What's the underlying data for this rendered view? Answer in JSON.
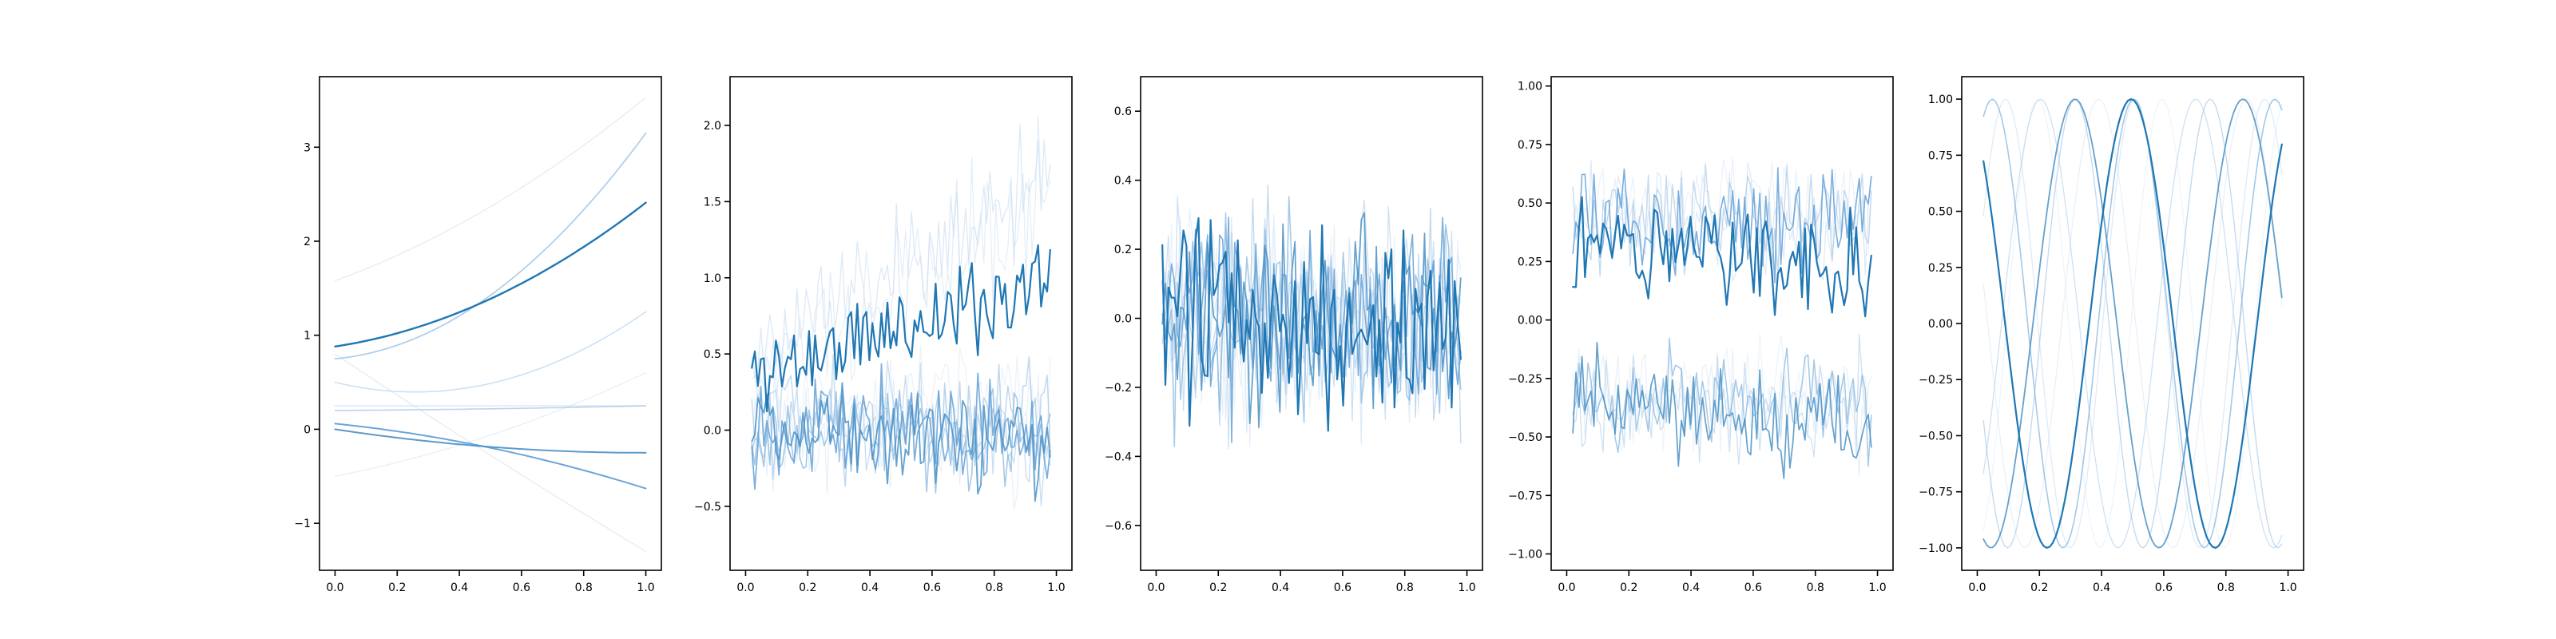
{
  "chart_data": [
    {
      "type": "line",
      "xlim": [
        -0.05,
        1.05
      ],
      "ylim": [
        -1.5,
        3.75
      ],
      "xticks": [
        0.0,
        0.2,
        0.4,
        0.6,
        0.8,
        1.0
      ],
      "xtick_labels": [
        "0.0",
        "0.2",
        "0.4",
        "0.6",
        "0.8",
        "1.0"
      ],
      "yticks": [
        -1,
        0,
        1,
        2,
        3
      ],
      "ytick_labels": [
        "−1",
        "0",
        "1",
        "2",
        "3"
      ],
      "grid": false,
      "series_kind": "polynomial",
      "series": [
        {
          "coeffs": [
            0.88,
            0.5,
            1.03
          ],
          "color": "#1f77b4",
          "opacity": 1.0,
          "width": 2.4
        },
        {
          "coeffs": [
            0.0,
            -0.5,
            0.25
          ],
          "color": "#4a90c4",
          "opacity": 0.9,
          "width": 2.0
        },
        {
          "coeffs": [
            0.06,
            -0.34,
            -0.35
          ],
          "color": "#5b9bd5",
          "opacity": 0.9,
          "width": 2.0
        },
        {
          "coeffs": [
            0.75,
            0.3,
            2.1
          ],
          "color": "#7fb2dd",
          "opacity": 0.65,
          "width": 1.7
        },
        {
          "coeffs": [
            0.5,
            -0.8,
            1.55
          ],
          "color": "#a6c9e8",
          "opacity": 0.6,
          "width": 1.5
        },
        {
          "coeffs": [
            0.2,
            0.02,
            0.03
          ],
          "color": "#9ec2e4",
          "opacity": 0.7,
          "width": 1.6
        },
        {
          "coeffs": [
            0.25,
            0.0,
            0.0
          ],
          "color": "#c4dbf0",
          "opacity": 0.6,
          "width": 1.4
        },
        {
          "coeffs": [
            1.58,
            1.2,
            0.75
          ],
          "color": "#c8def1",
          "opacity": 0.55,
          "width": 1.3
        },
        {
          "coeffs": [
            0.8,
            -2.2,
            0.1
          ],
          "color": "#c8def1",
          "opacity": 0.55,
          "width": 1.3
        },
        {
          "coeffs": [
            -0.5,
            0.65,
            0.45
          ],
          "color": "#cfe2f3",
          "opacity": 0.5,
          "width": 1.3
        }
      ]
    },
    {
      "type": "line",
      "xlim": [
        -0.05,
        1.05
      ],
      "ylim": [
        -0.92,
        2.32
      ],
      "xticks": [
        0.0,
        0.2,
        0.4,
        0.6,
        0.8,
        1.0
      ],
      "xtick_labels": [
        "0.0",
        "0.2",
        "0.4",
        "0.6",
        "0.8",
        "1.0"
      ],
      "yticks": [
        -0.5,
        0.0,
        0.5,
        1.0,
        1.5,
        2.0
      ],
      "ytick_labels": [
        "−0.5",
        "0.0",
        "0.5",
        "1.0",
        "1.5",
        "2.0"
      ],
      "grid": false,
      "series_kind": "noisy_trend",
      "n_points": 100,
      "series": [
        {
          "base": 0.35,
          "slope": 0.65,
          "noise": 0.22,
          "seed": 11,
          "color": "#1f77b4",
          "opacity": 1.0,
          "width": 2.2
        },
        {
          "base": 0.1,
          "slope": -0.2,
          "noise": 0.22,
          "seed": 12,
          "color": "#4a90c4",
          "opacity": 0.85,
          "width": 1.8
        },
        {
          "base": 0.05,
          "slope": -0.1,
          "noise": 0.22,
          "seed": 13,
          "color": "#5b9bd5",
          "opacity": 0.8,
          "width": 1.7
        },
        {
          "base": -0.05,
          "slope": 0.0,
          "noise": 0.24,
          "seed": 14,
          "color": "#7fb2dd",
          "opacity": 0.7,
          "width": 1.6
        },
        {
          "base": 0.0,
          "slope": 0.1,
          "noise": 0.25,
          "seed": 15,
          "color": "#9ec2e4",
          "opacity": 0.65,
          "width": 1.5
        },
        {
          "base": 0.2,
          "slope": -0.35,
          "noise": 0.24,
          "seed": 16,
          "color": "#a6c9e8",
          "opacity": 0.6,
          "width": 1.4
        },
        {
          "base": 0.5,
          "slope": 1.2,
          "noise": 0.28,
          "seed": 17,
          "color": "#c4dbf0",
          "opacity": 0.6,
          "width": 1.3
        },
        {
          "base": 0.3,
          "slope": 1.3,
          "noise": 0.3,
          "seed": 18,
          "color": "#cfe2f3",
          "opacity": 0.55,
          "width": 1.3
        },
        {
          "base": 0.0,
          "slope": -0.05,
          "noise": 0.26,
          "seed": 19,
          "color": "#cfe2f3",
          "opacity": 0.5,
          "width": 1.2
        },
        {
          "base": 0.1,
          "slope": 0.15,
          "noise": 0.24,
          "seed": 20,
          "color": "#d6e6f5",
          "opacity": 0.5,
          "width": 1.2
        }
      ]
    },
    {
      "type": "line",
      "xlim": [
        -0.05,
        1.05
      ],
      "ylim": [
        -0.73,
        0.7
      ],
      "xticks": [
        0.0,
        0.2,
        0.4,
        0.6,
        0.8,
        1.0
      ],
      "xtick_labels": [
        "0.0",
        "0.2",
        "0.4",
        "0.6",
        "0.8",
        "1.0"
      ],
      "yticks": [
        -0.6,
        -0.4,
        -0.2,
        0.0,
        0.2,
        0.4,
        0.6
      ],
      "ytick_labels": [
        "−0.6",
        "−0.4",
        "−0.2",
        "0.0",
        "0.2",
        "0.4",
        "0.6"
      ],
      "grid": false,
      "series_kind": "noisy_trend",
      "n_points": 100,
      "series": [
        {
          "base": 0.0,
          "slope": 0.0,
          "noise": 0.2,
          "seed": 31,
          "color": "#1f77b4",
          "opacity": 1.0,
          "width": 2.2
        },
        {
          "base": 0.0,
          "slope": 0.0,
          "noise": 0.19,
          "seed": 32,
          "color": "#4a90c4",
          "opacity": 0.85,
          "width": 1.7
        },
        {
          "base": 0.0,
          "slope": 0.0,
          "noise": 0.19,
          "seed": 33,
          "color": "#5b9bd5",
          "opacity": 0.8,
          "width": 1.6
        },
        {
          "base": 0.0,
          "slope": 0.0,
          "noise": 0.2,
          "seed": 34,
          "color": "#7fb2dd",
          "opacity": 0.7,
          "width": 1.5
        },
        {
          "base": 0.0,
          "slope": 0.0,
          "noise": 0.2,
          "seed": 35,
          "color": "#9ec2e4",
          "opacity": 0.6,
          "width": 1.4
        },
        {
          "base": 0.0,
          "slope": 0.0,
          "noise": 0.21,
          "seed": 36,
          "color": "#a6c9e8",
          "opacity": 0.55,
          "width": 1.3
        },
        {
          "base": 0.0,
          "slope": 0.0,
          "noise": 0.2,
          "seed": 37,
          "color": "#c4dbf0",
          "opacity": 0.55,
          "width": 1.3
        },
        {
          "base": 0.0,
          "slope": 0.0,
          "noise": 0.21,
          "seed": 38,
          "color": "#cfe2f3",
          "opacity": 0.5,
          "width": 1.2
        },
        {
          "base": 0.0,
          "slope": 0.0,
          "noise": 0.2,
          "seed": 39,
          "color": "#d6e6f5",
          "opacity": 0.5,
          "width": 1.2
        },
        {
          "base": 0.0,
          "slope": 0.0,
          "noise": 0.19,
          "seed": 40,
          "color": "#d6e6f5",
          "opacity": 0.45,
          "width": 1.2
        }
      ]
    },
    {
      "type": "line",
      "xlim": [
        -0.05,
        1.05
      ],
      "ylim": [
        -1.07,
        1.04
      ],
      "xticks": [
        0.0,
        0.2,
        0.4,
        0.6,
        0.8,
        1.0
      ],
      "xtick_labels": [
        "0.0",
        "0.2",
        "0.4",
        "0.6",
        "0.8",
        "1.0"
      ],
      "yticks": [
        -1.0,
        -0.75,
        -0.5,
        -0.25,
        0.0,
        0.25,
        0.5,
        0.75,
        1.0
      ],
      "ytick_labels": [
        "−1.00",
        "−0.75",
        "−0.50",
        "−0.25",
        "0.00",
        "0.25",
        "0.50",
        "0.75",
        "1.00"
      ],
      "grid": false,
      "series_kind": "noisy_trend",
      "n_points": 100,
      "series": [
        {
          "base": 0.35,
          "slope": -0.1,
          "noise": 0.17,
          "seed": 51,
          "color": "#1f77b4",
          "opacity": 1.0,
          "width": 2.2
        },
        {
          "base": -0.3,
          "slope": -0.2,
          "noise": 0.15,
          "seed": 52,
          "color": "#4a90c4",
          "opacity": 0.85,
          "width": 1.7
        },
        {
          "base": 0.4,
          "slope": 0.05,
          "noise": 0.15,
          "seed": 53,
          "color": "#5b9bd5",
          "opacity": 0.8,
          "width": 1.6
        },
        {
          "base": -0.35,
          "slope": 0.0,
          "noise": 0.15,
          "seed": 54,
          "color": "#7fb2dd",
          "opacity": 0.7,
          "width": 1.5
        },
        {
          "base": 0.45,
          "slope": 0.0,
          "noise": 0.16,
          "seed": 55,
          "color": "#9ec2e4",
          "opacity": 0.6,
          "width": 1.4
        },
        {
          "base": -0.4,
          "slope": 0.05,
          "noise": 0.15,
          "seed": 56,
          "color": "#a6c9e8",
          "opacity": 0.55,
          "width": 1.3
        },
        {
          "base": 0.45,
          "slope": -0.05,
          "noise": 0.16,
          "seed": 57,
          "color": "#c4dbf0",
          "opacity": 0.55,
          "width": 1.3
        },
        {
          "base": -0.3,
          "slope": -0.1,
          "noise": 0.16,
          "seed": 58,
          "color": "#cfe2f3",
          "opacity": 0.5,
          "width": 1.2
        },
        {
          "base": 0.5,
          "slope": 0.0,
          "noise": 0.15,
          "seed": 59,
          "color": "#d6e6f5",
          "opacity": 0.5,
          "width": 1.2
        },
        {
          "base": -0.35,
          "slope": 0.05,
          "noise": 0.15,
          "seed": 60,
          "color": "#d6e6f5",
          "opacity": 0.45,
          "width": 1.2
        }
      ]
    },
    {
      "type": "line",
      "xlim": [
        -0.05,
        1.05
      ],
      "ylim": [
        -1.1,
        1.1
      ],
      "xticks": [
        0.0,
        0.2,
        0.4,
        0.6,
        0.8,
        1.0
      ],
      "xtick_labels": [
        "0.0",
        "0.2",
        "0.4",
        "0.6",
        "0.8",
        "1.0"
      ],
      "yticks": [
        -1.0,
        -0.75,
        -0.5,
        -0.25,
        0.0,
        0.25,
        0.5,
        0.75,
        1.0
      ],
      "ytick_labels": [
        "−1.00",
        "−0.75",
        "−0.50",
        "−0.25",
        "0.00",
        "0.25",
        "0.50",
        "0.75",
        "1.00"
      ],
      "grid": false,
      "series_kind": "sinusoid",
      "n_points": 100,
      "series": [
        {
          "freq": 1.85,
          "phase": 2.1,
          "color": "#1f77b4",
          "opacity": 1.0,
          "width": 2.2
        },
        {
          "freq": 1.85,
          "phase": 4.2,
          "color": "#4a90c4",
          "opacity": 0.85,
          "width": 1.8
        },
        {
          "freq": 2.2,
          "phase": 0.9,
          "color": "#7fb2dd",
          "opacity": 0.7,
          "width": 1.6
        },
        {
          "freq": 2.3,
          "phase": 3.3,
          "color": "#9ec2e4",
          "opacity": 0.6,
          "width": 1.4
        },
        {
          "freq": 2.0,
          "phase": 5.3,
          "color": "#a6c9e8",
          "opacity": 0.55,
          "width": 1.3
        },
        {
          "freq": 2.4,
          "phase": 0.2,
          "color": "#c4dbf0",
          "opacity": 0.55,
          "width": 1.3
        },
        {
          "freq": 2.1,
          "phase": 2.7,
          "color": "#cfe2f3",
          "opacity": 0.5,
          "width": 1.2
        },
        {
          "freq": 2.5,
          "phase": 4.8,
          "color": "#d6e6f5",
          "opacity": 0.45,
          "width": 1.2
        }
      ]
    }
  ]
}
